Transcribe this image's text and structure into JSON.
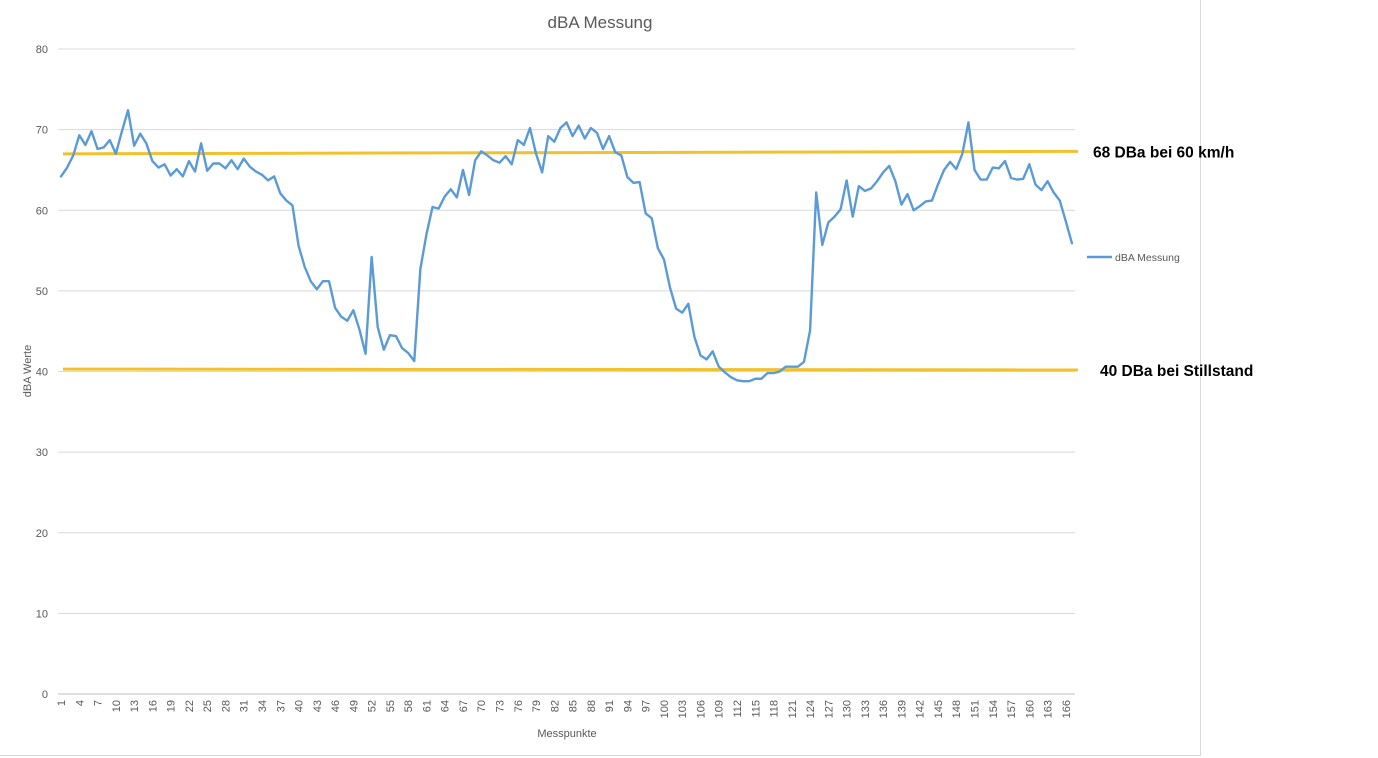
{
  "chart_data": {
    "type": "line",
    "title": "dBA Messung",
    "xlabel": "Messpunkte",
    "ylabel": "dBA Werte",
    "ylim": [
      0,
      80
    ],
    "yticks": [
      0,
      10,
      20,
      30,
      40,
      50,
      60,
      70,
      80
    ],
    "grid": "horizontal",
    "legend_position": "right",
    "x_tick_step": 3,
    "colors": {
      "series": "#5b9bd5",
      "reference": "#f2c12e",
      "grid": "#d9d9d9",
      "text": "#595959"
    },
    "series": [
      {
        "name": "dBA Messung",
        "x_start": 1,
        "values": [
          64.2,
          65.3,
          66.8,
          69.3,
          68.1,
          69.8,
          67.6,
          67.8,
          68.7,
          67.0,
          69.8,
          72.4,
          68.0,
          69.5,
          68.3,
          66.1,
          65.3,
          65.7,
          64.3,
          65.1,
          64.2,
          66.1,
          64.8,
          68.3,
          64.9,
          65.8,
          65.8,
          65.2,
          66.2,
          65.1,
          66.4,
          65.4,
          64.8,
          64.4,
          63.7,
          64.2,
          62.1,
          61.2,
          60.6,
          55.6,
          53.0,
          51.2,
          50.2,
          51.2,
          51.2,
          47.9,
          46.8,
          46.3,
          47.6,
          45.2,
          42.2,
          54.2,
          45.5,
          42.7,
          44.5,
          44.4,
          42.9,
          42.3,
          41.3,
          52.7,
          57.0,
          60.4,
          60.2,
          61.7,
          62.6,
          61.6,
          65.0,
          61.9,
          66.2,
          67.3,
          66.8,
          66.2,
          65.9,
          66.7,
          65.7,
          68.7,
          68.1,
          70.2,
          67.0,
          64.7,
          69.2,
          68.5,
          70.2,
          70.9,
          69.2,
          70.5,
          68.9,
          70.2,
          69.6,
          67.6,
          69.2,
          67.2,
          66.8,
          64.1,
          63.4,
          63.5,
          59.6,
          59.0,
          55.3,
          53.9,
          50.4,
          47.8,
          47.3,
          48.4,
          44.3,
          42.0,
          41.5,
          42.5,
          40.6,
          39.9,
          39.3,
          38.9,
          38.8,
          38.8,
          39.1,
          39.1,
          39.8,
          39.8,
          40.0,
          40.6,
          40.6,
          40.6,
          41.2,
          45.1,
          62.2,
          55.7,
          58.5,
          59.2,
          60.1,
          63.7,
          59.2,
          63.0,
          62.4,
          62.7,
          63.6,
          64.7,
          65.5,
          63.6,
          60.7,
          62.0,
          60.0,
          60.5,
          61.1,
          61.2,
          63.2,
          65.0,
          66.0,
          65.1,
          67.0,
          70.9,
          65.0,
          63.8,
          63.8,
          65.3,
          65.2,
          66.1,
          64.0,
          63.8,
          63.9,
          65.7,
          63.2,
          62.5,
          63.6,
          62.2,
          61.2,
          58.6,
          55.9
        ]
      }
    ],
    "reference_lines": [
      {
        "y_start": 67.0,
        "y_end": 67.3,
        "label": "68 DBa bei 60 km/h"
      },
      {
        "y_start": 40.3,
        "y_end": 40.2,
        "label": "40 DBa bei Stillstand"
      }
    ]
  }
}
